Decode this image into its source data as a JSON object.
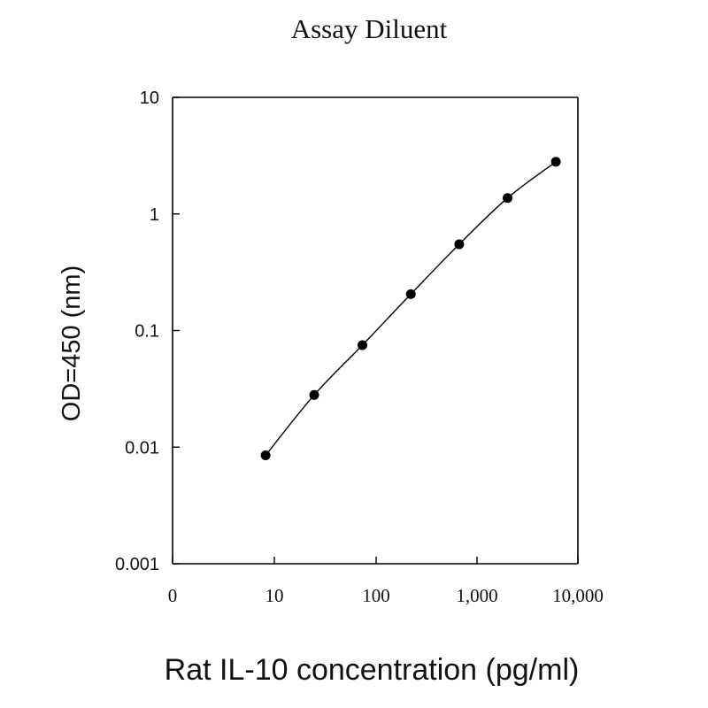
{
  "chart_data": {
    "type": "scatter",
    "title": "Assay Diluent",
    "xlabel": "Rat IL-10 concentration (pg/ml)",
    "ylabel": "OD=450 (nm)",
    "x_scale": "log",
    "y_scale": "log",
    "x_tick_labels": [
      "0",
      "10",
      "100",
      "1,000",
      "10,000"
    ],
    "y_tick_labels": [
      "10",
      "1",
      "0.1",
      "0.01",
      "0.001"
    ],
    "ylim": [
      0.001,
      10
    ],
    "grid": false,
    "legend": "none",
    "series": [
      {
        "x": [
          8.2,
          24.7,
          74,
          222,
          667,
          2000,
          6000
        ],
        "y": [
          0.0085,
          0.028,
          0.075,
          0.205,
          0.55,
          1.37,
          2.8
        ],
        "marker": "circle",
        "color": "#000000",
        "fit_line": true
      }
    ]
  }
}
